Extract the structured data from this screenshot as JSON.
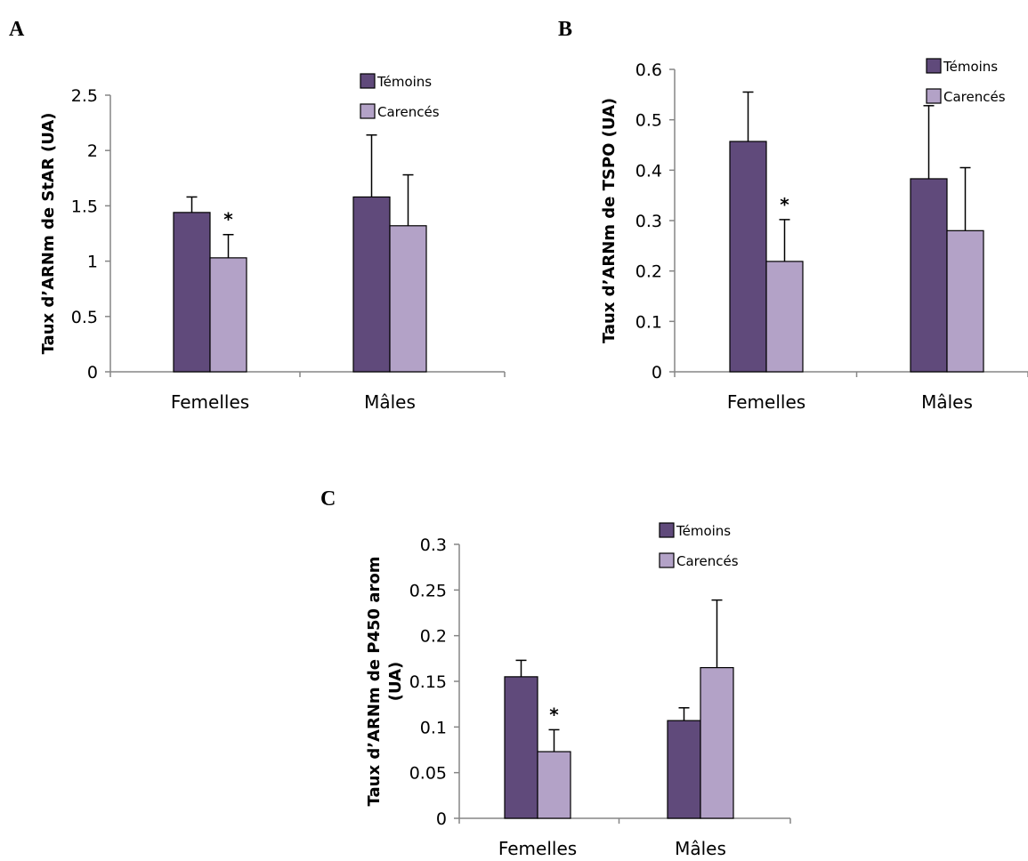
{
  "chart_data": [
    {
      "type": "bar",
      "panel": "A",
      "ylabel": "Taux d’ARNm de StAR (UA)",
      "ylim": [
        0,
        2.5
      ],
      "yticks": [
        "0",
        "0.5",
        "1",
        "1.5",
        "2",
        "2.5"
      ],
      "categories": [
        "Femelles",
        "Mâles"
      ],
      "series": [
        {
          "name": "Témoins",
          "color": "#604a7b",
          "values": [
            1.44,
            1.58
          ],
          "errors": [
            0.14,
            0.56
          ]
        },
        {
          "name": "Carencés",
          "color": "#b3a2c7",
          "values": [
            1.03,
            1.32
          ],
          "errors": [
            0.21,
            0.46
          ]
        }
      ],
      "annotations": [
        {
          "text": "*",
          "category": 0,
          "series": 1
        }
      ],
      "legend": "top-right",
      "grid": false
    },
    {
      "type": "bar",
      "panel": "B",
      "ylabel": "Taux d’ARNm de TSPO (UA)",
      "ylim": [
        0,
        0.6
      ],
      "yticks": [
        "0",
        "0.1",
        "0.2",
        "0.3",
        "0.4",
        "0.5",
        "0.6"
      ],
      "categories": [
        "Femelles",
        "Mâles"
      ],
      "series": [
        {
          "name": "Témoins",
          "color": "#604a7b",
          "values": [
            0.457,
            0.383
          ],
          "errors": [
            0.098,
            0.145
          ]
        },
        {
          "name": "Carencés",
          "color": "#b3a2c7",
          "values": [
            0.219,
            0.28
          ],
          "errors": [
            0.083,
            0.125
          ]
        }
      ],
      "annotations": [
        {
          "text": "*",
          "category": 0,
          "series": 1
        }
      ],
      "legend": "top-right",
      "grid": false
    },
    {
      "type": "bar",
      "panel": "C",
      "ylabel": "Taux d’ARNm de P450 arom (UA)",
      "ylim": [
        0,
        0.3
      ],
      "yticks": [
        "0",
        "0.05",
        "0.1",
        "0.15",
        "0.2",
        "0.25",
        "0.3"
      ],
      "categories": [
        "Femelles",
        "Mâles"
      ],
      "series": [
        {
          "name": "Témoins",
          "color": "#604a7b",
          "values": [
            0.155,
            0.107
          ],
          "errors": [
            0.018,
            0.014
          ]
        },
        {
          "name": "Carencés",
          "color": "#b3a2c7",
          "values": [
            0.073,
            0.165
          ],
          "errors": [
            0.024,
            0.074
          ]
        }
      ],
      "annotations": [
        {
          "text": "*",
          "category": 0,
          "series": 1
        }
      ],
      "legend": "top-right",
      "grid": false
    }
  ]
}
